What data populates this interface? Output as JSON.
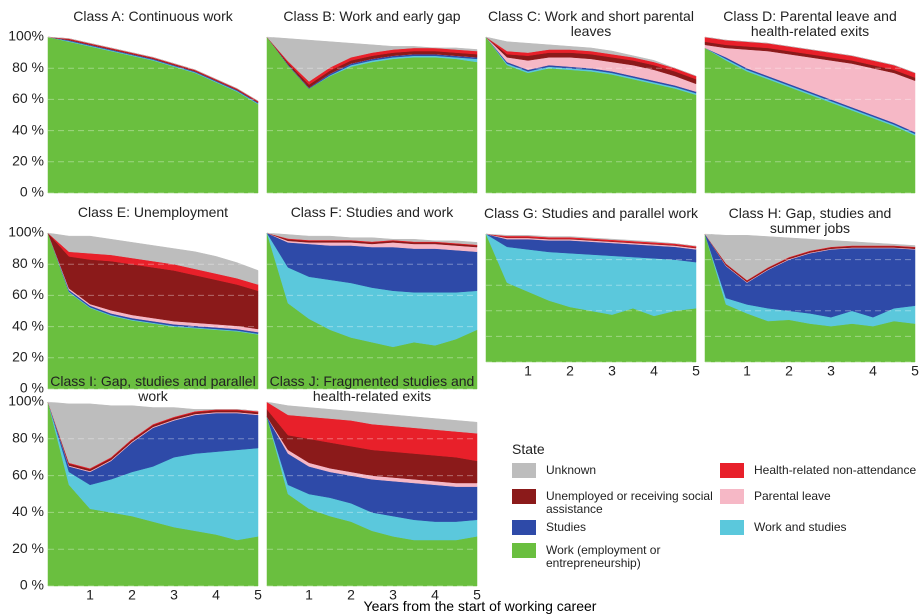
{
  "x_axis": {
    "label": "Years from the start of working career",
    "values": [
      0,
      0.5,
      1,
      1.5,
      2,
      2.5,
      3,
      3.5,
      4,
      4.5,
      5
    ],
    "xlim": [
      0,
      5
    ],
    "xticks": [
      1,
      2,
      3,
      4,
      5
    ]
  },
  "y_axis": {
    "ylim": [
      0,
      100
    ],
    "yticks": [
      {
        "value": 0,
        "label": "0 %"
      },
      {
        "value": 20,
        "label": "20 %"
      },
      {
        "value": 40,
        "label": "40 %"
      },
      {
        "value": 60,
        "label": "60 %"
      },
      {
        "value": 80,
        "label": "80 %"
      },
      {
        "value": 100,
        "label": "100%"
      }
    ],
    "grid": true
  },
  "legend": {
    "title": "State",
    "entries": [
      {
        "name": "Unknown",
        "color": "#bdbdbd"
      },
      {
        "name": "Unemployed or receiving social assistance",
        "color": "#8b1a1a"
      },
      {
        "name": "Studies",
        "color": "#2e4aa8"
      },
      {
        "name": "Work (employment or entrepreneurship)",
        "color": "#6abf3f"
      },
      {
        "name": "Health-related non-attendance",
        "color": "#e8202a"
      },
      {
        "name": "Parental leave",
        "color": "#f6b8c6"
      },
      {
        "name": "Work and studies",
        "color": "#5bc8dc"
      }
    ]
  },
  "chart_data": [
    {
      "type": "area",
      "title": "Class A: Continuous work",
      "series": [
        {
          "values": [
            0,
            0,
            0,
            0,
            0,
            0,
            0,
            0,
            0,
            0,
            0
          ]
        },
        {
          "values": [
            0,
            0.5,
            0.5,
            0.5,
            0.5,
            0.5,
            0.5,
            0.5,
            0.5,
            0.5,
            0.5
          ]
        },
        {
          "values": [
            0,
            0.5,
            0.5,
            0.5,
            0.5,
            0.5,
            0.5,
            0.5,
            0.5,
            0.5,
            0.5
          ]
        },
        {
          "values": [
            100,
            97,
            94,
            91,
            88,
            85,
            81,
            77,
            71,
            65,
            57
          ]
        },
        {
          "values": [
            0,
            0.5,
            0.5,
            0.5,
            0.5,
            0.5,
            0.5,
            0.5,
            0.5,
            0.5,
            0.5
          ]
        },
        {
          "values": [
            0,
            0,
            0,
            0,
            0,
            0,
            0,
            0,
            0,
            0,
            0
          ]
        },
        {
          "values": [
            0,
            0.5,
            0.5,
            0.5,
            0.5,
            0.5,
            0.5,
            0.5,
            0.5,
            0.5,
            0.5
          ]
        }
      ]
    },
    {
      "type": "area",
      "title": "Class B: Work and early gap",
      "series": [
        {
          "values": [
            0,
            14.5,
            26.5,
            16.5,
            9,
            5,
            2,
            1,
            0,
            1,
            1
          ]
        },
        {
          "values": [
            0,
            1,
            2,
            2,
            2,
            2,
            2,
            2,
            2,
            2,
            2
          ]
        },
        {
          "values": [
            0,
            0.5,
            0.5,
            1,
            1,
            1,
            1,
            1,
            1,
            1,
            1
          ]
        },
        {
          "values": [
            100,
            82,
            67,
            75,
            81,
            84,
            86,
            87,
            87,
            86,
            84
          ]
        },
        {
          "values": [
            0,
            1,
            2,
            2,
            2,
            2,
            2,
            2,
            2,
            2,
            2
          ]
        },
        {
          "values": [
            0,
            0,
            0,
            0,
            0,
            0,
            0,
            0,
            0,
            0,
            0
          ]
        },
        {
          "values": [
            0,
            0,
            0,
            0.5,
            1,
            1,
            1,
            1,
            1,
            1,
            2
          ]
        }
      ]
    },
    {
      "type": "area",
      "title": "Class C: Work and short parental leaves",
      "series": [
        {
          "values": [
            0,
            6,
            6,
            3,
            2,
            2,
            2,
            1,
            1,
            0,
            0
          ]
        },
        {
          "values": [
            0,
            2,
            3,
            3,
            3,
            3,
            3,
            3,
            3,
            3,
            3
          ]
        },
        {
          "values": [
            0,
            1,
            1,
            1,
            1,
            1,
            1,
            1,
            1,
            1,
            1
          ]
        },
        {
          "values": [
            100,
            82,
            77,
            80,
            79,
            78,
            76,
            73,
            70,
            67,
            63
          ]
        },
        {
          "values": [
            0,
            2,
            2,
            2,
            2,
            2,
            2,
            2,
            2,
            2,
            2
          ]
        },
        {
          "values": [
            0,
            3,
            6,
            5,
            6,
            6,
            6,
            7,
            7,
            6,
            5
          ]
        },
        {
          "values": [
            0,
            1,
            1,
            1,
            1,
            1,
            1,
            1,
            1,
            1,
            1
          ]
        }
      ]
    },
    {
      "type": "area",
      "title": "Class D: Parental leave and health-related exits",
      "series": [
        {
          "values": [
            0,
            0,
            0,
            0,
            0,
            0,
            0,
            0,
            0,
            0,
            0
          ]
        },
        {
          "values": [
            2,
            2,
            2,
            2,
            2,
            2,
            2,
            2,
            2,
            2,
            2
          ]
        },
        {
          "values": [
            0,
            1,
            1,
            1,
            1,
            1,
            1,
            1,
            1,
            1,
            1
          ]
        },
        {
          "values": [
            93,
            85,
            78,
            73,
            68,
            63,
            58,
            53,
            48,
            43,
            37
          ]
        },
        {
          "values": [
            3,
            3,
            3,
            3,
            3,
            3,
            3,
            3,
            3,
            3,
            3
          ]
        },
        {
          "values": [
            2,
            6,
            12,
            16,
            19,
            22,
            25,
            28,
            30,
            32,
            33
          ]
        },
        {
          "values": [
            0,
            1,
            1,
            1,
            1,
            1,
            1,
            1,
            1,
            1,
            1
          ]
        }
      ]
    },
    {
      "type": "area",
      "title": "Class E: Unemployment",
      "series": [
        {
          "values": [
            0,
            10,
            11,
            10,
            10,
            10,
            10,
            11,
            11,
            10,
            9
          ]
        },
        {
          "values": [
            0,
            20.5,
            28.5,
            31.5,
            32.5,
            32.5,
            32.5,
            30.5,
            28.5,
            26.5,
            24.5
          ]
        },
        {
          "values": [
            0,
            1,
            1,
            1,
            1,
            1,
            1,
            1,
            1,
            1,
            1
          ]
        },
        {
          "values": [
            100,
            62,
            52,
            47,
            44,
            42,
            40,
            39,
            38,
            37,
            35
          ]
        },
        {
          "values": [
            0,
            3,
            4,
            4,
            4,
            4,
            4,
            4,
            4,
            4,
            4
          ]
        },
        {
          "values": [
            0,
            1,
            1,
            2,
            2,
            2,
            2,
            2,
            2,
            2,
            2
          ]
        },
        {
          "values": [
            0,
            0.5,
            0.5,
            0.5,
            0.5,
            0.5,
            0.5,
            0.5,
            0.5,
            0.5,
            0.5
          ]
        }
      ]
    },
    {
      "type": "area",
      "title": "Class F: Studies and work",
      "series": [
        {
          "values": [
            0,
            2.5,
            2.5,
            2.5,
            1.5,
            2.5,
            0.5,
            1.5,
            0.5,
            1.5,
            1.5
          ]
        },
        {
          "values": [
            0,
            1,
            1,
            1,
            1,
            1,
            1,
            1,
            1,
            1,
            1
          ]
        },
        {
          "values": [
            0,
            16,
            21,
            22,
            24,
            26,
            28,
            28,
            28,
            27,
            25
          ]
        },
        {
          "values": [
            100,
            55,
            45,
            38,
            33,
            30,
            27,
            30,
            28,
            32,
            38
          ]
        },
        {
          "values": [
            0,
            0.5,
            0.5,
            0.5,
            0.5,
            0.5,
            0.5,
            0.5,
            0.5,
            0.5,
            0.5
          ]
        },
        {
          "values": [
            0,
            1,
            1,
            2,
            2,
            2,
            3,
            3,
            3,
            3,
            3
          ]
        },
        {
          "values": [
            0,
            23,
            27,
            32,
            35,
            35,
            36,
            32,
            34,
            30,
            25
          ]
        }
      ]
    },
    {
      "type": "area",
      "title": "Class G: Studies and parallel work",
      "series": [
        {
          "values": [
            0,
            0.5,
            0.5,
            0.5,
            0.5,
            0.5,
            0.5,
            0.5,
            0.5,
            0,
            0
          ]
        },
        {
          "values": [
            0,
            0.5,
            0.5,
            0.5,
            0.5,
            0.5,
            0.5,
            0.5,
            0.5,
            0.5,
            0.5
          ]
        },
        {
          "values": [
            0,
            6,
            8,
            9,
            10,
            10,
            10,
            10,
            10,
            10,
            10
          ]
        },
        {
          "values": [
            100,
            62,
            55,
            48,
            43,
            40,
            37,
            42,
            36,
            40,
            42
          ]
        },
        {
          "values": [
            0,
            1,
            1,
            1,
            1,
            1,
            1,
            1,
            1,
            1,
            1
          ]
        },
        {
          "values": [
            0,
            1,
            1,
            1,
            1,
            1,
            1,
            1,
            1,
            1,
            1
          ]
        },
        {
          "values": [
            0,
            28,
            33,
            38,
            42,
            44,
            46,
            40,
            45,
            40,
            36
          ]
        }
      ]
    },
    {
      "type": "area",
      "title": "Class H: Gap, studies and summer jobs",
      "series": [
        {
          "values": [
            0,
            22,
            35,
            24,
            15,
            9,
            5,
            3,
            2,
            1,
            1
          ]
        },
        {
          "values": [
            0,
            1,
            1,
            1,
            1,
            1,
            1,
            1,
            1,
            1,
            1
          ]
        },
        {
          "values": [
            0,
            25,
            17,
            30,
            40,
            47,
            53,
            49,
            54,
            47,
            44
          ]
        },
        {
          "values": [
            100,
            45,
            38,
            32,
            33,
            30,
            28,
            30,
            28,
            32,
            30
          ]
        },
        {
          "values": [
            0,
            0.5,
            0.5,
            0.5,
            0.5,
            0.5,
            0.5,
            0.5,
            0.5,
            0.5,
            0.5
          ]
        },
        {
          "values": [
            0,
            0.5,
            0.5,
            0.5,
            0.5,
            0.5,
            0.5,
            0.5,
            0.5,
            0.5,
            0.5
          ]
        },
        {
          "values": [
            0,
            5,
            7,
            10,
            7,
            8,
            7,
            10,
            7,
            10,
            14
          ]
        }
      ]
    },
    {
      "type": "area",
      "title": "Class I: Gap, studies and parallel work",
      "series": [
        {
          "values": [
            0,
            32,
            35,
            28,
            18,
            9,
            5,
            1,
            0,
            0,
            0
          ]
        },
        {
          "values": [
            0,
            1,
            1,
            1,
            1,
            1,
            1,
            1,
            1,
            1,
            1
          ]
        },
        {
          "values": [
            0,
            3,
            7,
            10,
            16,
            21,
            20,
            21,
            21,
            20,
            18
          ]
        },
        {
          "values": [
            100,
            55,
            42,
            40,
            38,
            35,
            32,
            30,
            28,
            25,
            27
          ]
        },
        {
          "values": [
            0,
            0.5,
            0.5,
            0.5,
            0.5,
            0.5,
            0.5,
            0.5,
            0.5,
            0.5,
            0.5
          ]
        },
        {
          "values": [
            0,
            0.5,
            0.5,
            0.5,
            0.5,
            0.5,
            0.5,
            0.5,
            0.5,
            0.5,
            0.5
          ]
        },
        {
          "values": [
            0,
            7,
            13,
            18,
            24,
            30,
            38,
            42,
            45,
            49,
            48
          ]
        }
      ]
    },
    {
      "type": "area",
      "title": "Class J: Fragmented studies and health-related exits",
      "series": [
        {
          "values": [
            0,
            5,
            5,
            5,
            5,
            6,
            6,
            6,
            6,
            6,
            6
          ]
        },
        {
          "values": [
            4,
            8,
            13,
            14,
            14,
            14,
            14,
            14,
            14,
            14,
            12
          ]
        },
        {
          "values": [
            0,
            17,
            15,
            14,
            15,
            18,
            19,
            20,
            20,
            19,
            18
          ]
        },
        {
          "values": [
            92,
            50,
            42,
            38,
            35,
            30,
            27,
            25,
            25,
            25,
            27
          ]
        },
        {
          "values": [
            4,
            11,
            12,
            13,
            14,
            14,
            14,
            14,
            14,
            14,
            15
          ]
        },
        {
          "values": [
            0,
            2,
            2,
            2,
            2,
            2,
            2,
            2,
            2,
            2,
            2
          ]
        },
        {
          "values": [
            0,
            5,
            8,
            10,
            10,
            10,
            11,
            11,
            10,
            10,
            9
          ]
        }
      ]
    }
  ]
}
